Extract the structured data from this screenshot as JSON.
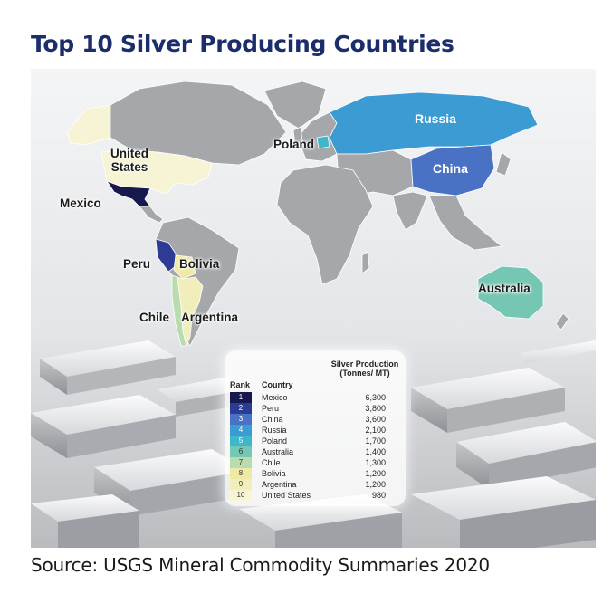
{
  "title": "Top 10 Silver Producing Countries",
  "source": "Source: USGS Mineral Commodity Summaries 2020",
  "colors": {
    "land_default": "#a5a7aa",
    "title": "#1b2d6b",
    "rank_1": "#17184f",
    "rank_2": "#2c3c94",
    "rank_3": "#4a72c4",
    "rank_4": "#3d9bd3",
    "rank_5": "#40b7c8",
    "rank_6": "#76c6b4",
    "rank_7": "#b8dcae",
    "rank_8": "#eeeaa5",
    "rank_9": "#f2eebb",
    "rank_10": "#f7f5d3"
  },
  "map_labels": {
    "russia": "Russia",
    "poland": "Poland",
    "china": "China",
    "united_states": "United States",
    "mexico": "Mexico",
    "peru": "Peru",
    "bolivia": "Bolivia",
    "australia": "Australia",
    "chile": "Chile",
    "argentina": "Argentina"
  },
  "legend": {
    "rank_header": "Rank",
    "country_header": "Country",
    "production_header": "Silver Production (Tonnes/ MT)",
    "rows": [
      {
        "rank": "1",
        "country": "Mexico",
        "production": "6,300"
      },
      {
        "rank": "2",
        "country": "Peru",
        "production": "3,800"
      },
      {
        "rank": "3",
        "country": "China",
        "production": "3,600"
      },
      {
        "rank": "4",
        "country": "Russia",
        "production": "2,100"
      },
      {
        "rank": "5",
        "country": "Poland",
        "production": "1,700"
      },
      {
        "rank": "6",
        "country": "Australia",
        "production": "1,400"
      },
      {
        "rank": "7",
        "country": "Chile",
        "production": "1,300"
      },
      {
        "rank": "8",
        "country": "Bolivia",
        "production": "1,200"
      },
      {
        "rank": "9",
        "country": "Argentina",
        "production": "1,200"
      },
      {
        "rank": "10",
        "country": "United States",
        "production": "980"
      }
    ]
  }
}
